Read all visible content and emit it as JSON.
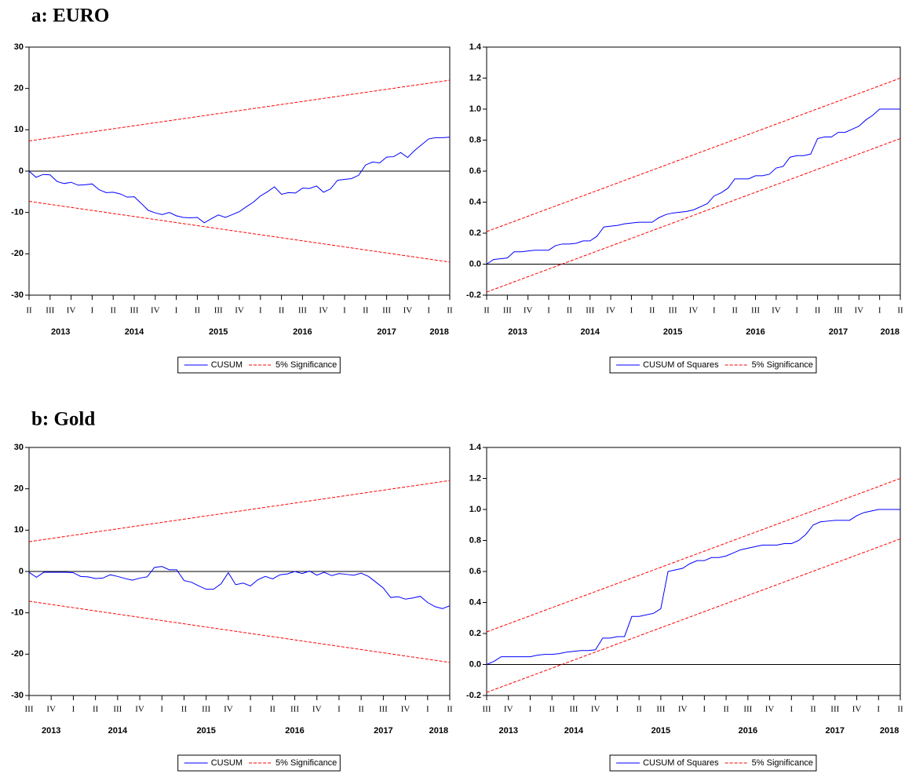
{
  "headings": [
    "a: EURO",
    "b: Gold"
  ],
  "chart_data": [
    {
      "type": "line",
      "ylim": [
        -30,
        30
      ],
      "yticks": [
        -30,
        -20,
        -10,
        0,
        10,
        20,
        30
      ],
      "reference_line": 0,
      "xlim": [
        2013.25,
        2018.25
      ],
      "xticks": [
        {
          "value": 2013.25,
          "label": "II"
        },
        {
          "value": 2013.5,
          "label": "III"
        },
        {
          "value": 2013.75,
          "label": "IV"
        },
        {
          "value": 2014,
          "label": "I"
        },
        {
          "value": 2014.25,
          "label": "II"
        },
        {
          "value": 2014.5,
          "label": "III"
        },
        {
          "value": 2014.75,
          "label": "IV"
        },
        {
          "value": 2015,
          "label": "I"
        },
        {
          "value": 2015.25,
          "label": "II"
        },
        {
          "value": 2015.5,
          "label": "III"
        },
        {
          "value": 2015.75,
          "label": "IV"
        },
        {
          "value": 2016,
          "label": "I"
        },
        {
          "value": 2016.25,
          "label": "II"
        },
        {
          "value": 2016.5,
          "label": "III"
        },
        {
          "value": 2016.75,
          "label": "IV"
        },
        {
          "value": 2017,
          "label": "I"
        },
        {
          "value": 2017.25,
          "label": "II"
        },
        {
          "value": 2017.5,
          "label": "III"
        },
        {
          "value": 2017.75,
          "label": "IV"
        },
        {
          "value": 2018,
          "label": "I"
        },
        {
          "value": 2018.25,
          "label": "II"
        }
      ],
      "year_ticks": [
        2013,
        2014,
        2015,
        2016,
        2017,
        2018
      ],
      "x": [
        2013.25,
        2013.333,
        2013.417,
        2013.5,
        2013.583,
        2013.667,
        2013.75,
        2013.833,
        2013.917,
        2014,
        2014.083,
        2014.167,
        2014.25,
        2014.333,
        2014.417,
        2014.5,
        2014.583,
        2014.667,
        2014.75,
        2014.833,
        2014.917,
        2015,
        2015.083,
        2015.167,
        2015.25,
        2015.333,
        2015.417,
        2015.5,
        2015.583,
        2015.667,
        2015.75,
        2015.833,
        2015.917,
        2016,
        2016.083,
        2016.167,
        2016.25,
        2016.333,
        2016.417,
        2016.5,
        2016.583,
        2016.667,
        2016.75,
        2016.833,
        2016.917,
        2017,
        2017.083,
        2017.167,
        2017.25,
        2017.333,
        2017.417,
        2017.5,
        2017.583,
        2017.667,
        2017.75,
        2017.833,
        2017.917,
        2018,
        2018.083,
        2018.167,
        2018.25
      ],
      "series": [
        {
          "name": "CUSUM",
          "color": "#0000ff",
          "values": [
            0,
            -1.5,
            -0.8,
            -0.9,
            -2.5,
            -3,
            -2.7,
            -3.4,
            -3.3,
            -3.1,
            -4.5,
            -5.2,
            -5.1,
            -5.5,
            -6.3,
            -6.2,
            -7.8,
            -9.5,
            -10.1,
            -10.5,
            -10,
            -10.8,
            -11.2,
            -11.3,
            -11.2,
            -12.5,
            -11.5,
            -10.6,
            -11.2,
            -10.5,
            -9.8,
            -8.6,
            -7.5,
            -6,
            -5,
            -3.8,
            -5.6,
            -5.2,
            -5.3,
            -4.1,
            -4.2,
            -3.6,
            -5.1,
            -4.3,
            -2.2,
            -2,
            -1.8,
            -1,
            1.5,
            2.2,
            2,
            3.4,
            3.5,
            4.5,
            3.3,
            5,
            6.4,
            7.8,
            8.1,
            8.1,
            8.2
          ]
        },
        {
          "name": "5% Significance",
          "color": "#ff0000",
          "dashed": true,
          "x": [
            2013.25,
            2018.25
          ],
          "upper": [
            7.3,
            22
          ],
          "lower": [
            -7.3,
            -22
          ]
        }
      ]
    },
    {
      "type": "line",
      "ylim": [
        -0.2,
        1.4
      ],
      "yticks": [
        -0.2,
        {
          "value": 0,
          "label": "0.0"
        },
        0.2,
        0.4,
        0.6,
        0.8,
        {
          "value": 1,
          "label": "1.0"
        },
        1.2,
        1.4
      ],
      "reference_line": 0,
      "xlim": [
        2013.25,
        2018.25
      ],
      "xticks": [
        {
          "value": 2013.25,
          "label": "II"
        },
        {
          "value": 2013.5,
          "label": "III"
        },
        {
          "value": 2013.75,
          "label": "IV"
        },
        {
          "value": 2014,
          "label": "I"
        },
        {
          "value": 2014.25,
          "label": "II"
        },
        {
          "value": 2014.5,
          "label": "III"
        },
        {
          "value": 2014.75,
          "label": "IV"
        },
        {
          "value": 2015,
          "label": "I"
        },
        {
          "value": 2015.25,
          "label": "II"
        },
        {
          "value": 2015.5,
          "label": "III"
        },
        {
          "value": 2015.75,
          "label": "IV"
        },
        {
          "value": 2016,
          "label": "I"
        },
        {
          "value": 2016.25,
          "label": "II"
        },
        {
          "value": 2016.5,
          "label": "III"
        },
        {
          "value": 2016.75,
          "label": "IV"
        },
        {
          "value": 2017,
          "label": "I"
        },
        {
          "value": 2017.25,
          "label": "II"
        },
        {
          "value": 2017.5,
          "label": "III"
        },
        {
          "value": 2017.75,
          "label": "IV"
        },
        {
          "value": 2018,
          "label": "I"
        },
        {
          "value": 2018.25,
          "label": "II"
        }
      ],
      "year_ticks": [
        2013,
        2014,
        2015,
        2016,
        2017,
        2018
      ],
      "x": [
        2013.25,
        2013.333,
        2013.417,
        2013.5,
        2013.583,
        2013.667,
        2013.75,
        2013.833,
        2013.917,
        2014,
        2014.083,
        2014.167,
        2014.25,
        2014.333,
        2014.417,
        2014.5,
        2014.583,
        2014.667,
        2014.75,
        2014.833,
        2014.917,
        2015,
        2015.083,
        2015.167,
        2015.25,
        2015.333,
        2015.417,
        2015.5,
        2015.583,
        2015.667,
        2015.75,
        2015.833,
        2015.917,
        2016,
        2016.083,
        2016.167,
        2016.25,
        2016.333,
        2016.417,
        2016.5,
        2016.583,
        2016.667,
        2016.75,
        2016.833,
        2016.917,
        2017,
        2017.083,
        2017.167,
        2017.25,
        2017.333,
        2017.417,
        2017.5,
        2017.583,
        2017.667,
        2017.75,
        2017.833,
        2017.917,
        2018,
        2018.083,
        2018.167,
        2018.25
      ],
      "series": [
        {
          "name": "CUSUM of Squares",
          "color": "#0000ff",
          "values": [
            0,
            0.03,
            0.035,
            0.04,
            0.08,
            0.08,
            0.085,
            0.09,
            0.09,
            0.09,
            0.12,
            0.13,
            0.13,
            0.135,
            0.15,
            0.15,
            0.18,
            0.24,
            0.245,
            0.25,
            0.26,
            0.265,
            0.27,
            0.27,
            0.27,
            0.3,
            0.32,
            0.33,
            0.335,
            0.34,
            0.35,
            0.37,
            0.39,
            0.44,
            0.46,
            0.49,
            0.55,
            0.55,
            0.55,
            0.57,
            0.57,
            0.58,
            0.62,
            0.63,
            0.69,
            0.7,
            0.7,
            0.71,
            0.81,
            0.82,
            0.82,
            0.85,
            0.85,
            0.87,
            0.89,
            0.93,
            0.96,
            1,
            1,
            1,
            1
          ]
        },
        {
          "name": "5% Significance",
          "color": "#ff0000",
          "dashed": true,
          "x": [
            2013.25,
            2018.25
          ],
          "upper": [
            0.21,
            1.2
          ],
          "lower": [
            -0.18,
            0.81
          ]
        }
      ]
    },
    {
      "type": "line",
      "ylim": [
        -30,
        30
      ],
      "yticks": [
        -30,
        -20,
        -10,
        0,
        10,
        20,
        30
      ],
      "reference_line": 0,
      "xlim": [
        2013.5,
        2018.25
      ],
      "xticks": [
        {
          "value": 2013.5,
          "label": "III"
        },
        {
          "value": 2013.75,
          "label": "IV"
        },
        {
          "value": 2014,
          "label": "I"
        },
        {
          "value": 2014.25,
          "label": "II"
        },
        {
          "value": 2014.5,
          "label": "III"
        },
        {
          "value": 2014.75,
          "label": "IV"
        },
        {
          "value": 2015,
          "label": "I"
        },
        {
          "value": 2015.25,
          "label": "II"
        },
        {
          "value": 2015.5,
          "label": "III"
        },
        {
          "value": 2015.75,
          "label": "IV"
        },
        {
          "value": 2016,
          "label": "I"
        },
        {
          "value": 2016.25,
          "label": "II"
        },
        {
          "value": 2016.5,
          "label": "III"
        },
        {
          "value": 2016.75,
          "label": "IV"
        },
        {
          "value": 2017,
          "label": "I"
        },
        {
          "value": 2017.25,
          "label": "II"
        },
        {
          "value": 2017.5,
          "label": "III"
        },
        {
          "value": 2017.75,
          "label": "IV"
        },
        {
          "value": 2018,
          "label": "I"
        },
        {
          "value": 2018.25,
          "label": "II"
        }
      ],
      "year_ticks": [
        2013,
        2014,
        2015,
        2016,
        2017,
        2018
      ],
      "x": [
        2013.5,
        2013.583,
        2013.667,
        2013.75,
        2013.833,
        2013.917,
        2014,
        2014.083,
        2014.167,
        2014.25,
        2014.333,
        2014.417,
        2014.5,
        2014.583,
        2014.667,
        2014.75,
        2014.833,
        2014.917,
        2015,
        2015.083,
        2015.167,
        2015.25,
        2015.333,
        2015.417,
        2015.5,
        2015.583,
        2015.667,
        2015.75,
        2015.833,
        2015.917,
        2016,
        2016.083,
        2016.167,
        2016.25,
        2016.333,
        2016.417,
        2016.5,
        2016.583,
        2016.667,
        2016.75,
        2016.833,
        2016.917,
        2017,
        2017.083,
        2017.167,
        2017.25,
        2017.333,
        2017.417,
        2017.5,
        2017.583,
        2017.667,
        2017.75,
        2017.833,
        2017.917,
        2018,
        2018.083,
        2018.167,
        2018.25
      ],
      "series": [
        {
          "name": "CUSUM",
          "color": "#0000ff",
          "values": [
            -0.2,
            -1.4,
            -0.2,
            -0.2,
            -0.2,
            -0.2,
            -0.3,
            -1.2,
            -1.3,
            -1.7,
            -1.6,
            -0.8,
            -1.2,
            -1.7,
            -2.1,
            -1.6,
            -1.3,
            1,
            1.2,
            0.4,
            0.4,
            -2.2,
            -2.6,
            -3.5,
            -4.3,
            -4.3,
            -3,
            -0.3,
            -3.2,
            -2.8,
            -3.5,
            -2,
            -1.2,
            -1.8,
            -0.8,
            -0.6,
            0,
            -0.5,
            0.1,
            -0.9,
            -0.2,
            -1,
            -0.5,
            -0.7,
            -0.9,
            -0.4,
            -1.2,
            -2.6,
            -4,
            -6.3,
            -6.1,
            -6.7,
            -6.4,
            -6,
            -7.5,
            -8.5,
            -9,
            -8.3
          ]
        },
        {
          "name": "5% Significance",
          "color": "#ff0000",
          "dashed": true,
          "x": [
            2013.5,
            2018.25
          ],
          "upper": [
            7.2,
            22
          ],
          "lower": [
            -7.2,
            -22
          ]
        }
      ]
    },
    {
      "type": "line",
      "ylim": [
        -0.2,
        1.4
      ],
      "yticks": [
        -0.2,
        {
          "value": 0,
          "label": "0.0"
        },
        0.2,
        0.4,
        0.6,
        0.8,
        {
          "value": 1,
          "label": "1.0"
        },
        1.2,
        1.4
      ],
      "reference_line": 0,
      "xlim": [
        2013.5,
        2018.25
      ],
      "xticks": [
        {
          "value": 2013.5,
          "label": "III"
        },
        {
          "value": 2013.75,
          "label": "IV"
        },
        {
          "value": 2014,
          "label": "I"
        },
        {
          "value": 2014.25,
          "label": "II"
        },
        {
          "value": 2014.5,
          "label": "III"
        },
        {
          "value": 2014.75,
          "label": "IV"
        },
        {
          "value": 2015,
          "label": "I"
        },
        {
          "value": 2015.25,
          "label": "II"
        },
        {
          "value": 2015.5,
          "label": "III"
        },
        {
          "value": 2015.75,
          "label": "IV"
        },
        {
          "value": 2016,
          "label": "I"
        },
        {
          "value": 2016.25,
          "label": "II"
        },
        {
          "value": 2016.5,
          "label": "III"
        },
        {
          "value": 2016.75,
          "label": "IV"
        },
        {
          "value": 2017,
          "label": "I"
        },
        {
          "value": 2017.25,
          "label": "II"
        },
        {
          "value": 2017.5,
          "label": "III"
        },
        {
          "value": 2017.75,
          "label": "IV"
        },
        {
          "value": 2018,
          "label": "I"
        },
        {
          "value": 2018.25,
          "label": "II"
        }
      ],
      "year_ticks": [
        2013,
        2014,
        2015,
        2016,
        2017,
        2018
      ],
      "x": [
        2013.5,
        2013.583,
        2013.667,
        2013.75,
        2013.833,
        2013.917,
        2014,
        2014.083,
        2014.167,
        2014.25,
        2014.333,
        2014.417,
        2014.5,
        2014.583,
        2014.667,
        2014.75,
        2014.833,
        2014.917,
        2015,
        2015.083,
        2015.167,
        2015.25,
        2015.333,
        2015.417,
        2015.5,
        2015.583,
        2015.667,
        2015.75,
        2015.833,
        2015.917,
        2016,
        2016.083,
        2016.167,
        2016.25,
        2016.333,
        2016.417,
        2016.5,
        2016.583,
        2016.667,
        2016.75,
        2016.833,
        2016.917,
        2017,
        2017.083,
        2017.167,
        2017.25,
        2017.333,
        2017.417,
        2017.5,
        2017.583,
        2017.667,
        2017.75,
        2017.833,
        2017.917,
        2018,
        2018.083,
        2018.167,
        2018.25
      ],
      "series": [
        {
          "name": "CUSUM of Squares",
          "color": "#0000ff",
          "values": [
            0,
            0.02,
            0.05,
            0.05,
            0.05,
            0.05,
            0.05,
            0.06,
            0.065,
            0.065,
            0.07,
            0.08,
            0.085,
            0.09,
            0.09,
            0.095,
            0.17,
            0.17,
            0.18,
            0.18,
            0.31,
            0.31,
            0.32,
            0.33,
            0.36,
            0.6,
            0.61,
            0.62,
            0.65,
            0.67,
            0.67,
            0.69,
            0.69,
            0.7,
            0.72,
            0.74,
            0.75,
            0.76,
            0.77,
            0.77,
            0.77,
            0.78,
            0.78,
            0.8,
            0.84,
            0.9,
            0.92,
            0.925,
            0.93,
            0.93,
            0.93,
            0.96,
            0.98,
            0.99,
            1,
            1,
            1,
            1
          ]
        },
        {
          "name": "5% Significance",
          "color": "#ff0000",
          "dashed": true,
          "x": [
            2013.5,
            2018.25
          ],
          "upper": [
            0.21,
            1.2
          ],
          "lower": [
            -0.18,
            0.81
          ]
        }
      ]
    }
  ]
}
